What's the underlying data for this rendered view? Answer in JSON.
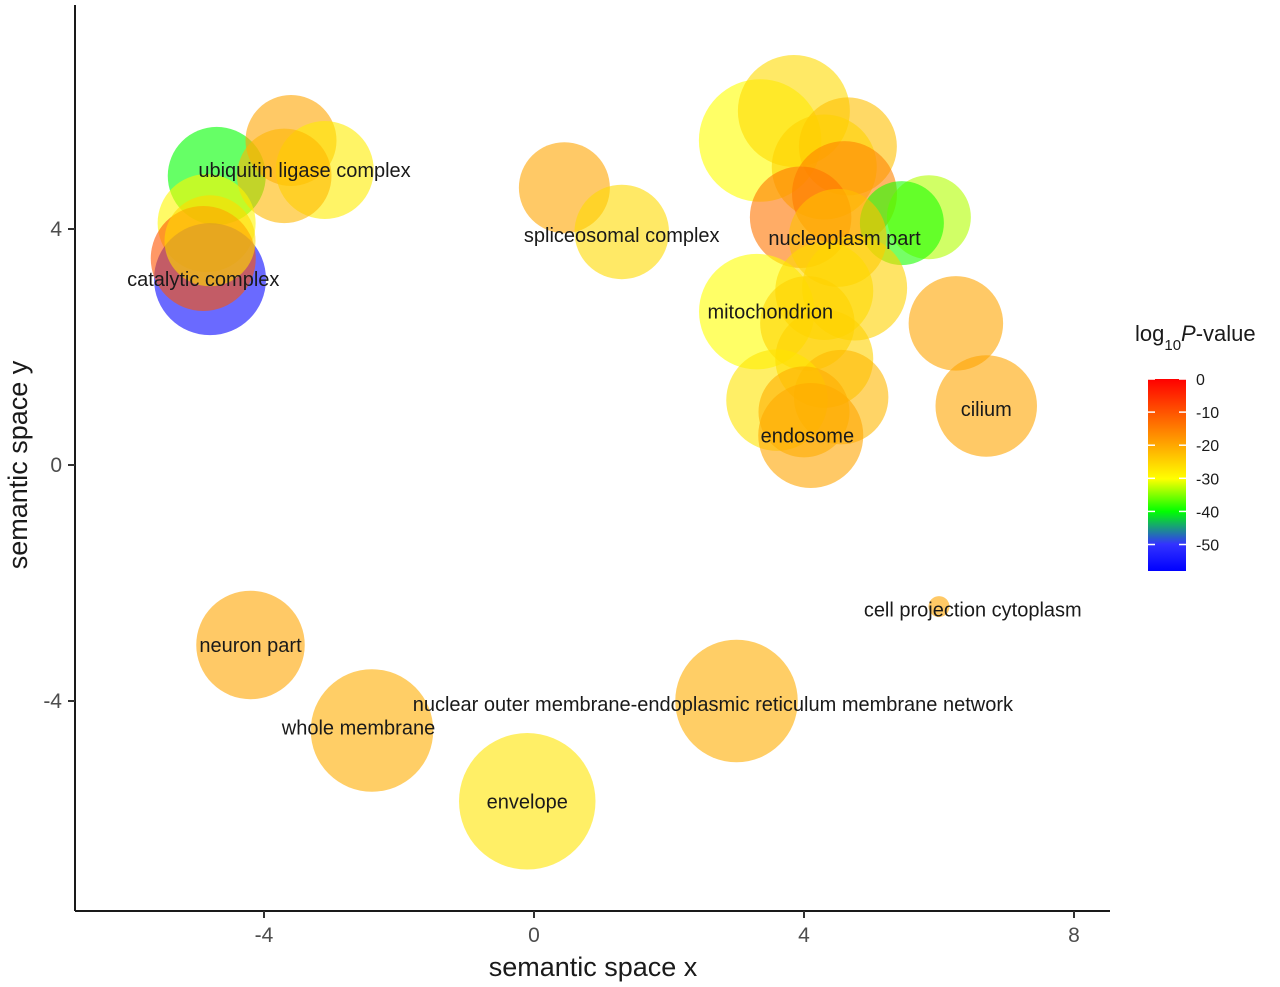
{
  "chart_data": {
    "type": "scatter",
    "xlabel": "semantic space x",
    "ylabel": "semantic space y",
    "xlim": [
      -6.8,
      8.6
    ],
    "ylim": [
      -7.4,
      7.8
    ],
    "x_ticks": [
      -4,
      0,
      4,
      8
    ],
    "y_ticks": [
      -4,
      0,
      4
    ],
    "legend": {
      "title_prefix": "log",
      "title_sub": "10",
      "title_p": "P",
      "title_suffix": "-value",
      "ticks": [
        0,
        -10,
        -20,
        -30,
        -40,
        -50
      ],
      "range": [
        -58,
        0
      ],
      "placement": "right"
    },
    "points": [
      {
        "x": -4.7,
        "y": 4.9,
        "size": 28,
        "log10p": -33,
        "label": ""
      },
      {
        "x": -3.6,
        "y": 5.5,
        "size": 26,
        "log10p": -10,
        "label": ""
      },
      {
        "x": -3.1,
        "y": 5.0,
        "size": 28,
        "log10p": -18,
        "label": ""
      },
      {
        "x": -3.7,
        "y": 4.9,
        "size": 27,
        "log10p": -12,
        "label": ""
      },
      {
        "x": -4.85,
        "y": 4.1,
        "size": 28,
        "log10p": -19,
        "label": "ubiquitin ligase complex"
      },
      {
        "x": -4.8,
        "y": 3.15,
        "size": 32,
        "log10p": -57,
        "label": ""
      },
      {
        "x": -4.9,
        "y": 3.5,
        "size": 30,
        "log10p": -5,
        "label": ""
      },
      {
        "x": -4.8,
        "y": 3.8,
        "size": 26,
        "log10p": -16,
        "label": "catalytic complex"
      },
      {
        "x": 0.45,
        "y": 4.7,
        "size": 26,
        "log10p": -10,
        "label": ""
      },
      {
        "x": 1.3,
        "y": 3.95,
        "size": 27,
        "log10p": -16,
        "label": "spliceosomal complex"
      },
      {
        "x": 3.35,
        "y": 5.5,
        "size": 35,
        "log10p": -20,
        "label": ""
      },
      {
        "x": 3.85,
        "y": 6.0,
        "size": 32,
        "log10p": -16,
        "label": ""
      },
      {
        "x": 4.65,
        "y": 5.4,
        "size": 28,
        "log10p": -13,
        "label": ""
      },
      {
        "x": 4.3,
        "y": 5.05,
        "size": 30,
        "log10p": -15,
        "label": ""
      },
      {
        "x": 4.6,
        "y": 4.6,
        "size": 30,
        "log10p": -8,
        "label": ""
      },
      {
        "x": 3.95,
        "y": 4.2,
        "size": 29,
        "log10p": -7,
        "label": ""
      },
      {
        "x": 5.85,
        "y": 4.2,
        "size": 24,
        "log10p": -23,
        "label": ""
      },
      {
        "x": 5.45,
        "y": 4.1,
        "size": 24,
        "log10p": -29,
        "label": ""
      },
      {
        "x": 4.5,
        "y": 3.85,
        "size": 28,
        "log10p": -13,
        "label": "nucleoplasm part"
      },
      {
        "x": 4.75,
        "y": 3.0,
        "size": 30,
        "log10p": -15,
        "label": ""
      },
      {
        "x": 3.3,
        "y": 2.6,
        "size": 33,
        "log10p": -20,
        "label": ""
      },
      {
        "x": 4.3,
        "y": 2.95,
        "size": 28,
        "log10p": -16,
        "label": ""
      },
      {
        "x": 4.05,
        "y": 2.4,
        "size": 27,
        "log10p": -15,
        "label": "mitochondrion"
      },
      {
        "x": 6.25,
        "y": 2.4,
        "size": 27,
        "log10p": -10,
        "label": ""
      },
      {
        "x": 4.3,
        "y": 1.8,
        "size": 28,
        "log10p": -15,
        "label": ""
      },
      {
        "x": 4.55,
        "y": 1.15,
        "size": 27,
        "log10p": -12,
        "label": ""
      },
      {
        "x": 3.6,
        "y": 1.1,
        "size": 29,
        "log10p": -17,
        "label": ""
      },
      {
        "x": 4.1,
        "y": 0.5,
        "size": 30,
        "log10p": -10,
        "label": ""
      },
      {
        "x": 4.0,
        "y": 0.9,
        "size": 26,
        "log10p": -11,
        "label": "endosome"
      },
      {
        "x": 6.7,
        "y": 1.0,
        "size": 29,
        "log10p": -10,
        "label": "cilium"
      },
      {
        "x": 6.0,
        "y": -2.4,
        "size": 6,
        "log10p": -10,
        "label": "cell projection cytoplasm"
      },
      {
        "x": -4.2,
        "y": -3.05,
        "size": 31,
        "log10p": -10,
        "label": "neuron part"
      },
      {
        "x": -2.4,
        "y": -4.5,
        "size": 35,
        "log10p": -11,
        "label": "whole membrane"
      },
      {
        "x": 3.0,
        "y": -4.0,
        "size": 35,
        "log10p": -11,
        "label": "nuclear outer membrane-endoplasmic reticulum membrane network"
      },
      {
        "x": -0.1,
        "y": -5.7,
        "size": 39,
        "log10p": -17,
        "label": "envelope"
      }
    ],
    "labels": [
      {
        "text": "ubiquitin ligase complex",
        "x": -3.4,
        "y": 5.0
      },
      {
        "text": "catalytic complex",
        "x": -4.9,
        "y": 3.15
      },
      {
        "text": "spliceosomal complex",
        "x": 1.3,
        "y": 3.9
      },
      {
        "text": "nucleoplasm part",
        "x": 4.6,
        "y": 3.85
      },
      {
        "text": "mitochondrion",
        "x": 3.5,
        "y": 2.6
      },
      {
        "text": "endosome",
        "x": 4.05,
        "y": 0.5
      },
      {
        "text": "cilium",
        "x": 6.7,
        "y": 0.95
      },
      {
        "text": "cell projection cytoplasm",
        "x": 6.5,
        "y": -2.45
      },
      {
        "text": "neuron part",
        "x": -4.2,
        "y": -3.05
      },
      {
        "text": "whole membrane",
        "x": -2.6,
        "y": -4.45
      },
      {
        "text": "nuclear outer membrane-endoplasmic reticulum membrane network",
        "x": 2.65,
        "y": -4.05
      },
      {
        "text": "envelope",
        "x": -0.1,
        "y": -5.7
      }
    ]
  }
}
